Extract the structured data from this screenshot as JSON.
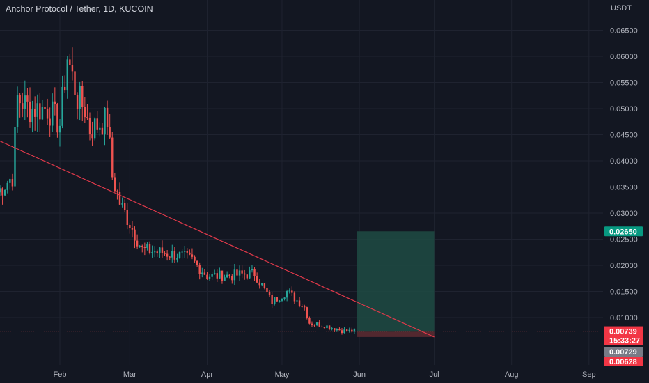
{
  "header": {
    "title": "Anchor Protocol / Tether, 1D, KUCOIN"
  },
  "chart_data": {
    "type": "candlestick",
    "currency": "USDT",
    "y_axis_ticks": [
      "0.06500",
      "0.06000",
      "0.05500",
      "0.05000",
      "0.04500",
      "0.04000",
      "0.03500",
      "0.03000",
      "0.02500",
      "0.02000",
      "0.01500",
      "0.01000"
    ],
    "x_axis_ticks": [
      "Feb",
      "Mar",
      "Apr",
      "May",
      "Jun",
      "Jul",
      "Aug",
      "Sep"
    ],
    "ylim": [
      0.0055,
      0.069
    ],
    "price_labels": {
      "target": "0.02650",
      "last": "0.00739",
      "countdown": "15:33:27",
      "entry": "0.00729",
      "stop": "0.00628"
    },
    "position": {
      "entry": 0.00729,
      "target": 0.0265,
      "stop": 0.00628,
      "start_date": "2022-05-31",
      "end_date": "2022-07-01"
    },
    "trendline": {
      "from": {
        "date": "2022-01-07",
        "price": 0.044
      },
      "to": {
        "date": "2022-07-01",
        "price": 0.00628
      }
    },
    "grid": true,
    "colors": {
      "up": "#26a69a",
      "down": "#ef5350",
      "background": "#131722",
      "grid": "#1f2330",
      "trendline": "#e0394a",
      "target_zone": "#1e4b43",
      "stop_zone": "#5a2a31"
    },
    "series_keypoints": [
      {
        "date": "2022-01-07",
        "price": 0.034
      },
      {
        "date": "2022-01-13",
        "price": 0.037
      },
      {
        "date": "2022-01-15",
        "price": 0.052
      },
      {
        "date": "2022-01-20",
        "price": 0.05
      },
      {
        "date": "2022-01-27",
        "price": 0.05
      },
      {
        "date": "2022-02-01",
        "price": 0.047
      },
      {
        "date": "2022-02-04",
        "price": 0.06
      },
      {
        "date": "2022-02-08",
        "price": 0.052
      },
      {
        "date": "2022-02-11",
        "price": 0.05
      },
      {
        "date": "2022-02-13",
        "price": 0.046
      },
      {
        "date": "2022-02-20",
        "price": 0.048
      },
      {
        "date": "2022-02-22",
        "price": 0.037
      },
      {
        "date": "2022-02-25",
        "price": 0.032
      },
      {
        "date": "2022-03-02",
        "price": 0.027
      },
      {
        "date": "2022-03-06",
        "price": 0.023
      },
      {
        "date": "2022-03-20",
        "price": 0.022
      },
      {
        "date": "2022-03-26",
        "price": 0.021
      },
      {
        "date": "2022-04-01",
        "price": 0.018
      },
      {
        "date": "2022-04-10",
        "price": 0.018
      },
      {
        "date": "2022-04-20",
        "price": 0.0185
      },
      {
        "date": "2022-04-27",
        "price": 0.013
      },
      {
        "date": "2022-05-03",
        "price": 0.015
      },
      {
        "date": "2022-05-10",
        "price": 0.012
      },
      {
        "date": "2022-05-12",
        "price": 0.009
      },
      {
        "date": "2022-05-18",
        "price": 0.0085
      },
      {
        "date": "2022-05-25",
        "price": 0.0075
      },
      {
        "date": "2022-05-30",
        "price": 0.0074
      }
    ]
  }
}
